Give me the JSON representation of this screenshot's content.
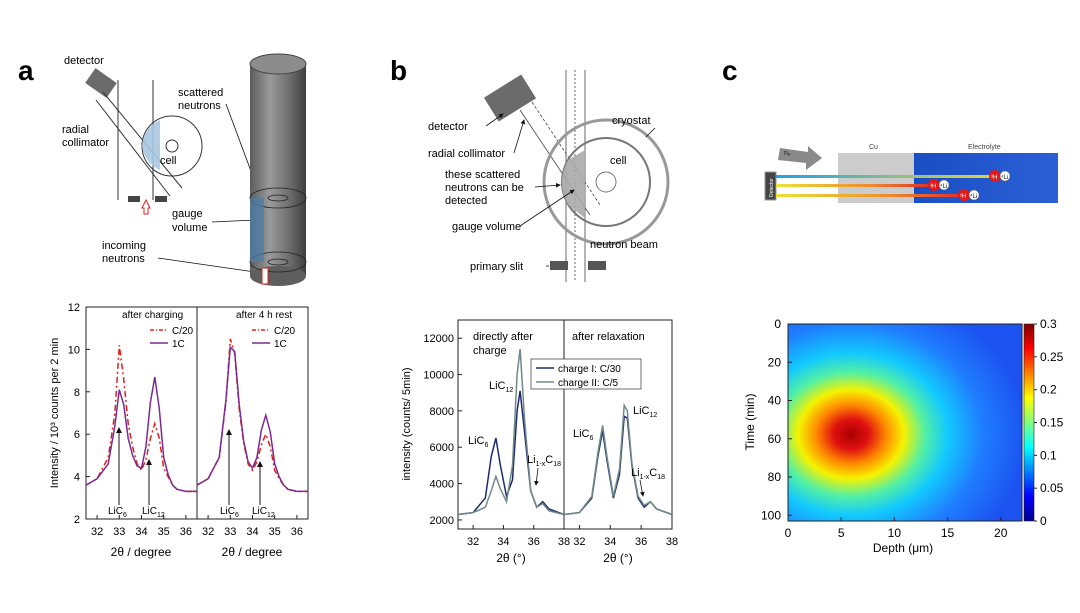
{
  "panels": {
    "a": {
      "letter": "a",
      "schematic": {
        "detector": "detector",
        "scattered": "scattered",
        "neutrons": "neutrons",
        "radial": "radial",
        "collimator": "collimator",
        "cell": "cell",
        "gauge": "gauge",
        "volume": "volume",
        "incoming": "incoming",
        "incoming_neutrons": "neutrons"
      },
      "plot": {
        "ylabel": "Intensity / 10³ counts per 2 min",
        "left_title": "after charging",
        "right_title": "after 4 h rest",
        "legend": [
          "C/20",
          "1C"
        ],
        "yticks": [
          "2",
          "4",
          "6",
          "8",
          "10",
          "12"
        ],
        "xticks": [
          "32",
          "33",
          "34",
          "35",
          "36"
        ],
        "xlabel": "2θ / degree",
        "ann_lic6": "LiC",
        "ann_lic6_sub": "6",
        "ann_lic12": "LiC",
        "ann_lic12_sub": "12"
      }
    },
    "b": {
      "letter": "b",
      "schematic": {
        "detector": "detector",
        "radial": "radial collimator",
        "these1": "these scattered",
        "these2": "neutrons can be",
        "these3": "detected",
        "gauge": "gauge volume",
        "cryostat": "cryostat",
        "cell": "cell",
        "beam": "neutron beam",
        "slit": "primary slit"
      },
      "plot": {
        "ylabel": "intensity (counts/ 5min)",
        "left_title1": "directly after",
        "left_title2": "charge",
        "right_title": "after relaxation",
        "legend": [
          "charge I: C/30",
          "charge II: C/5"
        ],
        "yticks": [
          "2000",
          "4000",
          "6000",
          "8000",
          "10000",
          "12000"
        ],
        "xticks_left": [
          "32",
          "34",
          "36",
          "38"
        ],
        "xticks_right": [
          "32",
          "34",
          "36",
          "38"
        ],
        "xlabel": "2θ (°)",
        "lic12": "LiC",
        "lic12_sub": "12",
        "lic6": "LiC",
        "lic6_sub": "6",
        "li": "Li",
        "li_sub": "1-x",
        "c18": "C",
        "c18_sub": "18"
      }
    },
    "c": {
      "letter": "c",
      "schematic": {
        "cu": "Cu",
        "electrolyte": "Electrolyte",
        "detector": "Detector",
        "ne": "nₑ",
        "h": "³H",
        "li": "⁴Li"
      },
      "heatmap": {
        "ylabel": "Time (min)",
        "xlabel": "Depth (μm)",
        "xticks": [
          "0",
          "5",
          "10",
          "15",
          "20"
        ],
        "yticks": [
          "0",
          "20",
          "40",
          "60",
          "80",
          "100"
        ],
        "cbar": [
          "0.3",
          "0.25",
          "0.2",
          "0.15",
          "0.1",
          "0.05",
          "0"
        ]
      }
    }
  },
  "chart_data": [
    {
      "type": "line",
      "panel": "a-left",
      "title": "after charging",
      "ylabel": "Intensity / 10³ counts per 2 min",
      "xlabel": "2θ / degree",
      "xlim": [
        31.5,
        36.5
      ],
      "ylim": [
        2,
        12
      ],
      "series": [
        {
          "name": "C/20",
          "color": "#e0201b",
          "dash": "6,3,2,3",
          "x": [
            31.5,
            32,
            32.5,
            32.8,
            33,
            33.2,
            33.4,
            33.6,
            33.8,
            34,
            34.2,
            34.4,
            34.6,
            34.8,
            35,
            35.2,
            35.4,
            35.6,
            36,
            36.5
          ],
          "y": [
            3.6,
            3.9,
            4.9,
            7.0,
            10.2,
            8.6,
            6.5,
            5.4,
            4.6,
            4.3,
            4.8,
            5.8,
            6.5,
            5.8,
            4.4,
            4.0,
            3.6,
            3.4,
            3.3,
            3.3
          ]
        },
        {
          "name": "1C",
          "color": "#7b2a8f",
          "dash": "",
          "x": [
            31.5,
            32,
            32.5,
            32.8,
            33,
            33.2,
            33.4,
            33.6,
            33.8,
            34,
            34.2,
            34.4,
            34.6,
            34.8,
            35,
            35.2,
            35.4,
            35.6,
            36,
            36.5
          ],
          "y": [
            3.6,
            3.9,
            4.6,
            6.4,
            8.1,
            7.4,
            5.8,
            5.0,
            4.5,
            4.4,
            5.4,
            7.5,
            8.7,
            7.2,
            4.9,
            4.1,
            3.6,
            3.4,
            3.3,
            3.3
          ]
        }
      ]
    },
    {
      "type": "line",
      "panel": "a-right",
      "title": "after 4 h rest",
      "xlim": [
        31.5,
        36.5
      ],
      "ylim": [
        2,
        12
      ],
      "series": [
        {
          "name": "C/20",
          "color": "#e0201b",
          "dash": "6,3,2,3",
          "x": [
            31.5,
            32,
            32.5,
            32.8,
            33,
            33.2,
            33.4,
            33.6,
            33.8,
            34,
            34.2,
            34.4,
            34.6,
            34.8,
            35,
            35.2,
            35.4,
            35.6,
            36,
            36.5
          ],
          "y": [
            3.6,
            3.9,
            4.9,
            7.5,
            10.5,
            9.8,
            7.2,
            5.6,
            4.6,
            4.3,
            4.7,
            5.5,
            6.0,
            5.4,
            4.3,
            3.9,
            3.6,
            3.4,
            3.3,
            3.3
          ]
        },
        {
          "name": "1C",
          "color": "#7b2a8f",
          "dash": "",
          "x": [
            31.5,
            32,
            32.5,
            32.8,
            33,
            33.2,
            33.4,
            33.6,
            33.8,
            34,
            34.2,
            34.4,
            34.6,
            34.8,
            35,
            35.2,
            35.4,
            35.6,
            36,
            36.5
          ],
          "y": [
            3.6,
            3.9,
            4.9,
            7.6,
            10.1,
            9.9,
            7.4,
            5.7,
            4.7,
            4.4,
            4.9,
            6.2,
            6.9,
            6.1,
            4.6,
            4.0,
            3.6,
            3.4,
            3.3,
            3.3
          ]
        }
      ]
    },
    {
      "type": "line",
      "panel": "b-left",
      "title": "directly after charge",
      "ylabel": "intensity (counts/ 5min)",
      "xlabel": "2θ (°)",
      "xlim": [
        31,
        38
      ],
      "ylim": [
        1500,
        13000
      ],
      "series": [
        {
          "name": "charge I: C/30",
          "color": "#1f2a6e",
          "x": [
            31,
            32,
            32.8,
            33.2,
            33.5,
            33.8,
            34.2,
            34.6,
            34.9,
            35.1,
            35.4,
            35.8,
            36.2,
            36.6,
            37,
            38
          ],
          "y": [
            2300,
            2400,
            3200,
            5500,
            6500,
            5000,
            3300,
            4200,
            8000,
            9100,
            6800,
            3600,
            2700,
            3000,
            2600,
            2300
          ]
        },
        {
          "name": "charge II: C/5",
          "color": "#6f8a88",
          "x": [
            31,
            32,
            32.8,
            33.2,
            33.5,
            33.8,
            34.2,
            34.6,
            34.9,
            35.1,
            35.4,
            35.8,
            36.2,
            36.6,
            37,
            38
          ],
          "y": [
            2300,
            2400,
            2700,
            3600,
            4400,
            3700,
            3000,
            5000,
            10000,
            11400,
            7500,
            3600,
            2700,
            2900,
            2500,
            2300
          ]
        }
      ]
    },
    {
      "type": "line",
      "panel": "b-right",
      "title": "after relaxation",
      "xlim": [
        31,
        38
      ],
      "ylim": [
        1500,
        13000
      ],
      "series": [
        {
          "name": "charge I: C/30",
          "color": "#1f2a6e",
          "x": [
            31,
            32,
            32.8,
            33.2,
            33.5,
            33.8,
            34.2,
            34.6,
            34.9,
            35.1,
            35.4,
            35.8,
            36.2,
            36.6,
            37,
            38
          ],
          "y": [
            2300,
            2400,
            3200,
            5500,
            6900,
            5200,
            3200,
            4500,
            7700,
            7600,
            5000,
            3200,
            2700,
            3000,
            2600,
            2300
          ]
        },
        {
          "name": "charge II: C/5",
          "color": "#6f8a88",
          "x": [
            31,
            32,
            32.8,
            33.2,
            33.5,
            33.8,
            34.2,
            34.6,
            34.9,
            35.1,
            35.4,
            35.8,
            36.2,
            36.6,
            37,
            38
          ],
          "y": [
            2300,
            2400,
            3300,
            5700,
            7200,
            5400,
            3300,
            4800,
            8300,
            8000,
            5100,
            3300,
            2800,
            3000,
            2600,
            2300
          ]
        }
      ]
    },
    {
      "type": "heatmap",
      "panel": "c",
      "xlabel": "Depth (μm)",
      "ylabel": "Time (min)",
      "xlim": [
        0,
        22
      ],
      "ylim": [
        0,
        103
      ],
      "clim": [
        0,
        0.3
      ],
      "colorbar_ticks": [
        0.3,
        0.25,
        0.2,
        0.15,
        0.1,
        0.05,
        0
      ],
      "peak": {
        "x": 6,
        "y": 58,
        "value": 0.3
      }
    }
  ]
}
